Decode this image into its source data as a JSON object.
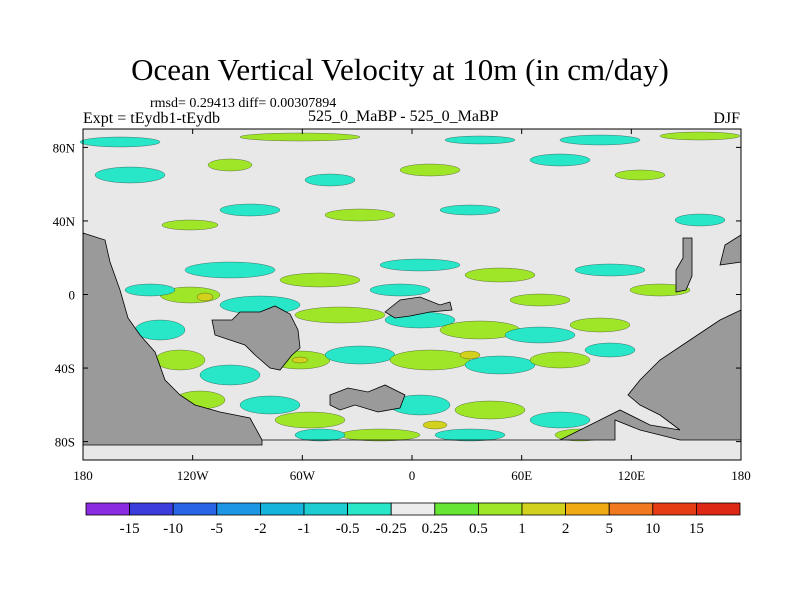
{
  "title": "Ocean Vertical Velocity at 10m (in cm/day)",
  "stats_line": "rmsd= 0.29413  diff= 0.00307894",
  "experiment_label": "Expt = tEydb1-tEydb",
  "comparison_label": "525_0_MaBP - 525_0_MaBP",
  "season_label": "DJF",
  "map": {
    "x_ticks": [
      "180",
      "120W",
      "60W",
      "0",
      "60E",
      "120E",
      "180"
    ],
    "y_ticks": [
      "80N",
      "40N",
      "0",
      "40S",
      "80S"
    ],
    "lon_range": [
      -180,
      180
    ],
    "lat_range": [
      -90,
      90
    ],
    "colors": {
      "land": "#9a9a9a",
      "background": "#e8e8e8",
      "coast_edge": "#000000"
    }
  },
  "colorbar": {
    "labels": [
      "-15",
      "-10",
      "-5",
      "-2",
      "-1",
      "-0.5",
      "-0.25",
      "0.25",
      "0.5",
      "1",
      "2",
      "5",
      "10",
      "15"
    ],
    "colors": [
      "#8a2be2",
      "#3c3cdc",
      "#2864e6",
      "#1e96e6",
      "#14b4dc",
      "#1ecdd2",
      "#28e6c8",
      "#ececec",
      "#64e632",
      "#a0e628",
      "#d2d21e",
      "#f0aa14",
      "#f0781e",
      "#e63c14",
      "#dc2814"
    ]
  }
}
